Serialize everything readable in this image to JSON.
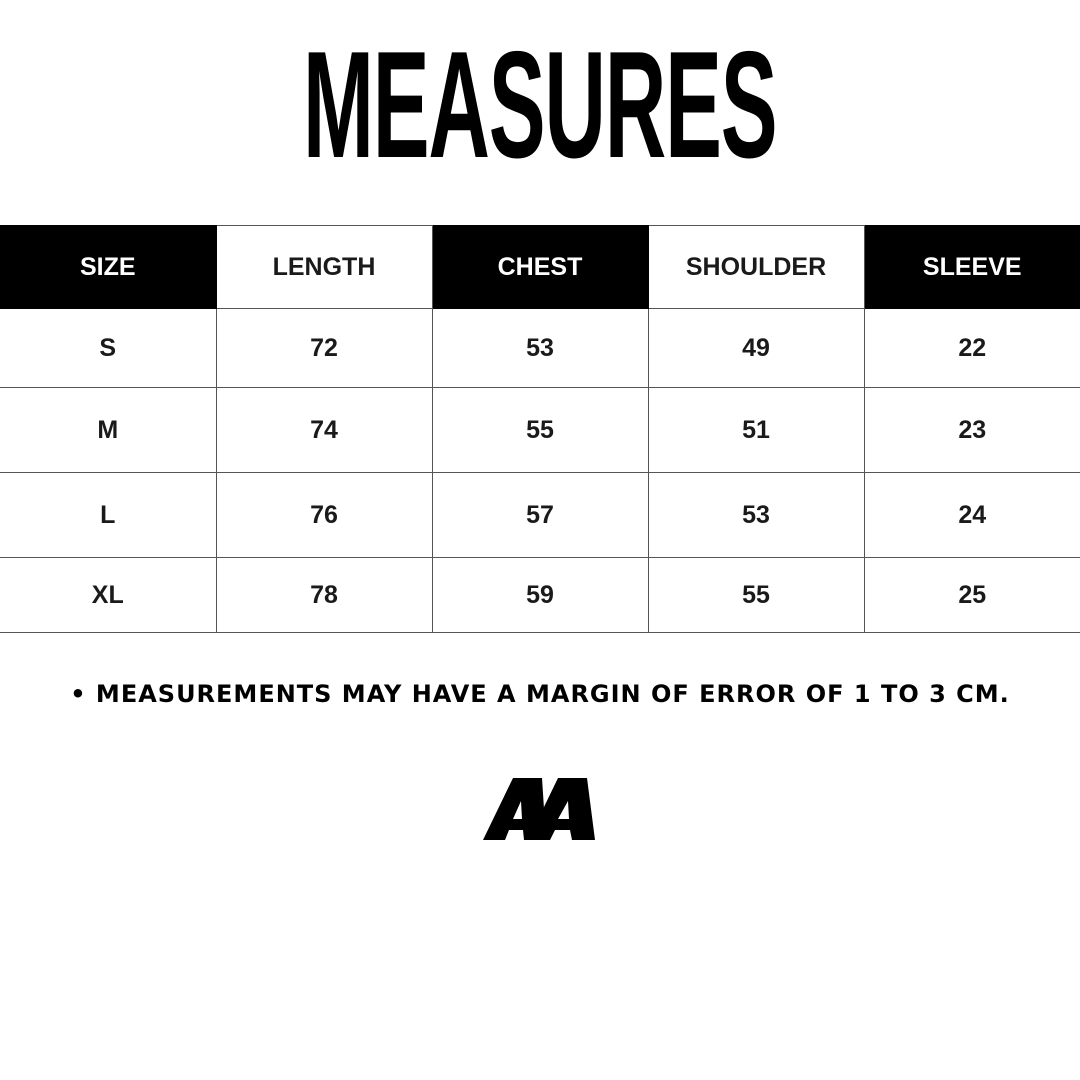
{
  "title": "MEASURES",
  "table": {
    "headers": [
      "SIZE",
      "LENGTH",
      "CHEST",
      "SHOULDER",
      "SLEEVE"
    ],
    "rows": [
      [
        "S",
        "72",
        "53",
        "49",
        "22"
      ],
      [
        "M",
        "74",
        "55",
        "51",
        "23"
      ],
      [
        "L",
        "76",
        "57",
        "53",
        "24"
      ],
      [
        "XL",
        "78",
        "59",
        "55",
        "25"
      ]
    ]
  },
  "note": "• MEASUREMENTS MAY HAVE A MARGIN OF ERROR OF 1 TO 3 CM.",
  "logo": "AA"
}
